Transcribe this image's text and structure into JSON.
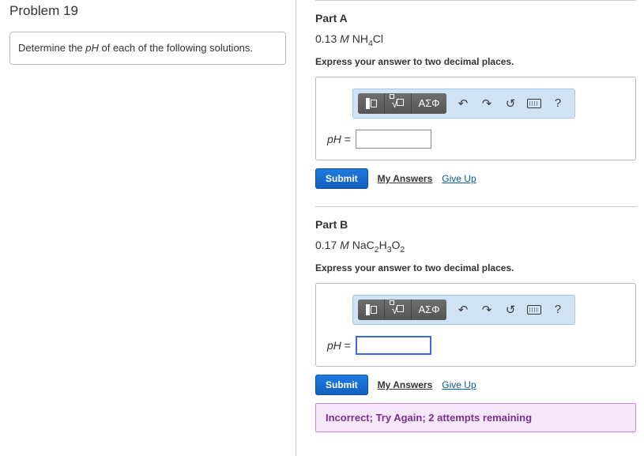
{
  "problem": {
    "title": "Problem 19",
    "prompt_prefix": "Determine the ",
    "prompt_var": "pH",
    "prompt_suffix": " of each of the following solutions."
  },
  "toolbar": {
    "template_icon": "template-icon",
    "sqrt_icon": "nth-root-icon",
    "greek_label": "ΑΣΦ",
    "undo": "↶",
    "redo": "↷",
    "reset": "↺",
    "keyboard_icon": "keyboard-icon",
    "help": "?"
  },
  "parts": {
    "A": {
      "title": "Part A",
      "conc": "0.13",
      "unit": "M",
      "species_html": "NH<sub>4</sub>Cl",
      "instruction": "Express your answer to two decimal places.",
      "label_var": "pH",
      "label_eq": " = ",
      "input_value": "",
      "input_focused": false,
      "submit": "Submit",
      "my_answers": "My Answers",
      "give_up": "Give Up",
      "feedback": null
    },
    "B": {
      "title": "Part B",
      "conc": "0.17",
      "unit": "M",
      "species_html": "NaC<sub>2</sub>H<sub>3</sub>O<sub>2</sub>",
      "instruction": "Express your answer to two decimal places.",
      "label_var": "pH",
      "label_eq": " = ",
      "input_value": "",
      "input_focused": true,
      "submit": "Submit",
      "my_answers": "My Answers",
      "give_up": "Give Up",
      "feedback": "Incorrect; Try Again; 2 attempts remaining"
    }
  },
  "colors": {
    "toolbar_bg": "#cfe3f5",
    "toolbar_border": "#a7c7e7",
    "dark_btn": "#5a5a5a",
    "submit_bg": "#1f7ae0",
    "link": "#0a5a9c",
    "feedback_bg": "#f6e7fb",
    "feedback_border": "#c08bd0",
    "feedback_text": "#7a2f8f"
  }
}
